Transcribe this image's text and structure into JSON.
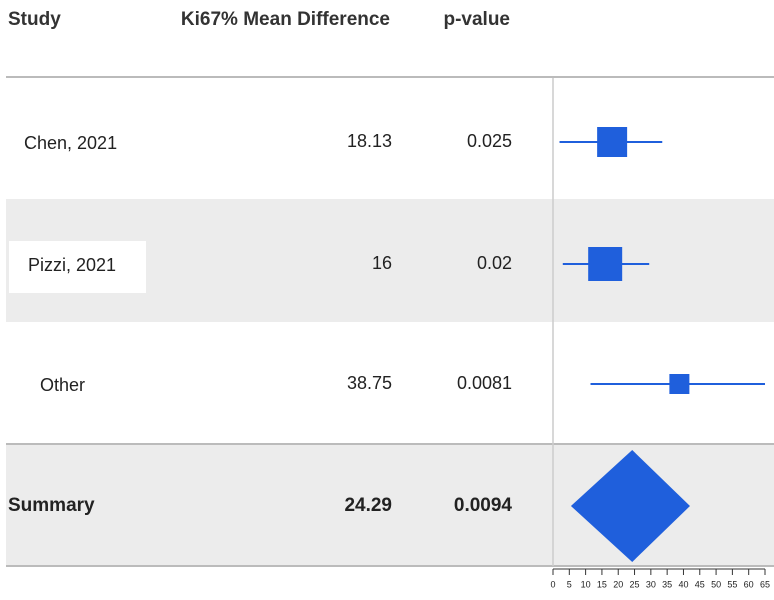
{
  "chart_data": {
    "type": "forest",
    "headers": [
      "Study",
      "Ki67% Mean Difference",
      "p-value"
    ],
    "categories": [
      "Chen, 2021",
      "Pizzi, 2021",
      "Other"
    ],
    "values": [
      18.13,
      16,
      38.75
    ],
    "ci_low": [
      2,
      3,
      11.5
    ],
    "ci_high": [
      33.5,
      29.5,
      65
    ],
    "weights": [
      30,
      34,
      20
    ],
    "p_values": [
      0.025,
      0.02,
      0.0081
    ],
    "summary": {
      "label": "Summary",
      "value": 24.29,
      "ci_low": 5.5,
      "ci_high": 42,
      "p_value": 0.0094
    },
    "xlim": [
      0,
      65
    ],
    "xticks": [
      0,
      5,
      10,
      15,
      20,
      25,
      30,
      35,
      40,
      45,
      50,
      55,
      60,
      65
    ],
    "color": "#1f5fdc"
  }
}
